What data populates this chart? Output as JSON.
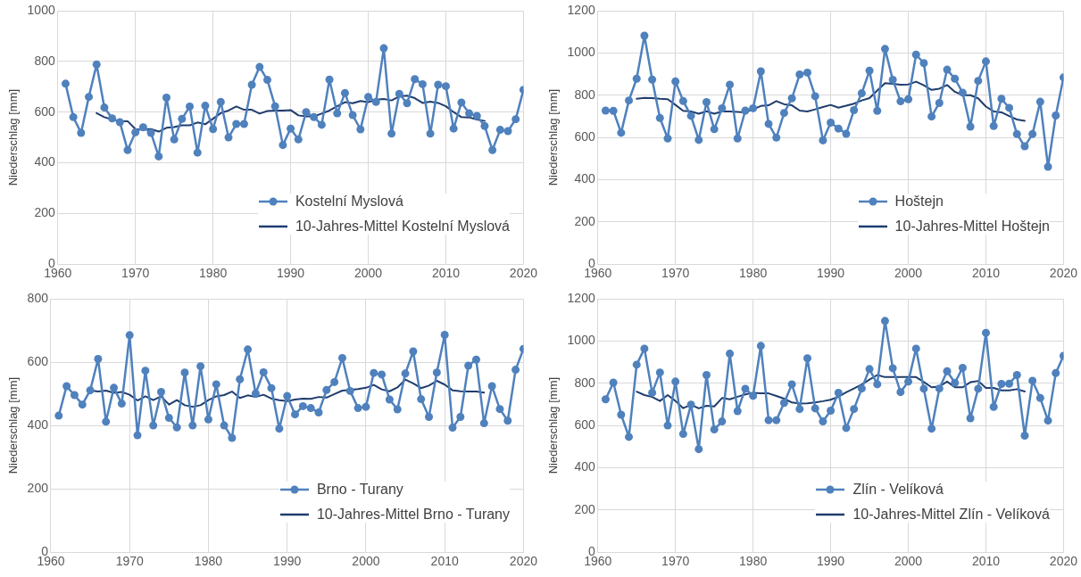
{
  "chart_data": [
    {
      "type": "line",
      "ylabel": "Niederschlag [mm]",
      "xlim": [
        1960,
        2020
      ],
      "xticks": [
        1960,
        1970,
        1980,
        1990,
        2000,
        2010,
        2020
      ],
      "ylim": [
        0,
        1000
      ],
      "yticks": [
        0,
        200,
        400,
        600,
        800,
        1000
      ],
      "grid": true,
      "legend": "bottom right",
      "series": [
        {
          "name": "Kostelní Myslová",
          "color": "#4f81bd",
          "marker": "circle",
          "x": [
            1961,
            1962,
            1963,
            1964,
            1965,
            1966,
            1967,
            1968,
            1969,
            1970,
            1971,
            1972,
            1973,
            1974,
            1975,
            1976,
            1977,
            1978,
            1979,
            1980,
            1981,
            1982,
            1983,
            1984,
            1985,
            1986,
            1987,
            1988,
            1989,
            1990,
            1991,
            1992,
            1993,
            1994,
            1995,
            1996,
            1997,
            1998,
            1999,
            2000,
            2001,
            2002,
            2003,
            2004,
            2005,
            2006,
            2007,
            2008,
            2009,
            2010,
            2011,
            2012,
            2013,
            2014,
            2015,
            2016,
            2017,
            2018,
            2019,
            2020
          ],
          "values": [
            712,
            580,
            518,
            660,
            788,
            618,
            575,
            560,
            450,
            520,
            540,
            518,
            425,
            657,
            492,
            573,
            622,
            440,
            625,
            533,
            640,
            500,
            553,
            553,
            708,
            778,
            727,
            623,
            470,
            535,
            492,
            600,
            580,
            550,
            728,
            595,
            675,
            588,
            532,
            660,
            640,
            852,
            515,
            672,
            635,
            730,
            710,
            515,
            708,
            702,
            535,
            638,
            595,
            585,
            545,
            450,
            530,
            525,
            572,
            688
          ]
        },
        {
          "name": "10-Jahres-Mittel Kostelní Myslová",
          "color": "#1f3d6e",
          "marker": "none",
          "x": [
            1965,
            1966,
            1967,
            1968,
            1969,
            1970,
            1971,
            1972,
            1973,
            1974,
            1975,
            1976,
            1977,
            1978,
            1979,
            1980,
            1981,
            1982,
            1983,
            1984,
            1985,
            1986,
            1987,
            1988,
            1989,
            1990,
            1991,
            1992,
            1993,
            1994,
            1995,
            1996,
            1997,
            1998,
            1999,
            2000,
            2001,
            2002,
            2003,
            2004,
            2005,
            2006,
            2007,
            2008,
            2009,
            2010,
            2011,
            2012,
            2013,
            2014,
            2015
          ],
          "values": [
            596,
            580,
            571,
            565,
            564,
            533,
            532,
            533,
            523,
            538,
            541,
            548,
            548,
            559,
            552,
            574,
            596,
            606,
            622,
            609,
            609,
            594,
            604,
            606,
            606,
            608,
            587,
            583,
            583,
            594,
            606,
            623,
            639,
            635,
            644,
            639,
            649,
            652,
            646,
            662,
            665,
            655,
            636,
            641,
            636,
            623,
            600,
            580,
            579,
            571,
            565
          ]
        }
      ]
    },
    {
      "type": "line",
      "ylabel": "Niederschlag [mm]",
      "xlim": [
        1960,
        2020
      ],
      "xticks": [
        1960,
        1970,
        1980,
        1990,
        2000,
        2010,
        2020
      ],
      "ylim": [
        0,
        1200
      ],
      "yticks": [
        0,
        200,
        400,
        600,
        800,
        1000,
        1200
      ],
      "grid": true,
      "legend": "bottom right",
      "series": [
        {
          "name": "Hoštejn",
          "color": "#4f81bd",
          "marker": "circle",
          "x": [
            1961,
            1962,
            1963,
            1964,
            1965,
            1966,
            1967,
            1968,
            1969,
            1970,
            1971,
            1972,
            1973,
            1974,
            1975,
            1976,
            1977,
            1978,
            1979,
            1980,
            1981,
            1982,
            1983,
            1984,
            1985,
            1986,
            1987,
            1988,
            1989,
            1990,
            1991,
            1992,
            1993,
            1994,
            1995,
            1996,
            1997,
            1998,
            1999,
            2000,
            2001,
            2002,
            2003,
            2004,
            2005,
            2006,
            2007,
            2008,
            2009,
            2010,
            2011,
            2012,
            2013,
            2014,
            2015,
            2016,
            2017,
            2018,
            2019,
            2020
          ],
          "values": [
            727,
            726,
            622,
            775,
            878,
            1082,
            874,
            692,
            595,
            865,
            772,
            702,
            588,
            767,
            639,
            738,
            850,
            595,
            727,
            738,
            913,
            664,
            599,
            716,
            785,
            898,
            907,
            795,
            586,
            670,
            642,
            617,
            729,
            809,
            916,
            726,
            1019,
            873,
            771,
            781,
            992,
            952,
            699,
            763,
            921,
            878,
            812,
            651,
            868,
            960,
            654,
            783,
            740,
            616,
            558,
            616,
            769,
            461,
            704,
            884
          ]
        },
        {
          "name": "10-Jahres-Mittel Hoštejn",
          "color": "#1f3d6e",
          "marker": "none",
          "x": [
            1965,
            1966,
            1967,
            1968,
            1969,
            1970,
            1971,
            1972,
            1973,
            1974,
            1975,
            1976,
            1977,
            1978,
            1979,
            1980,
            1981,
            1982,
            1983,
            1984,
            1985,
            1986,
            1987,
            1988,
            1989,
            1990,
            1991,
            1992,
            1993,
            1994,
            1995,
            1996,
            1997,
            1998,
            1999,
            2000,
            2001,
            2002,
            2003,
            2004,
            2005,
            2006,
            2007,
            2008,
            2009,
            2010,
            2011,
            2012,
            2013,
            2014,
            2015
          ],
          "values": [
            783,
            787,
            786,
            783,
            781,
            754,
            726,
            723,
            712,
            724,
            712,
            723,
            723,
            721,
            719,
            733,
            749,
            752,
            772,
            757,
            752,
            727,
            723,
            733,
            744,
            754,
            741,
            750,
            760,
            775,
            786,
            822,
            857,
            854,
            850,
            851,
            864,
            847,
            825,
            831,
            848,
            816,
            800,
            800,
            785,
            746,
            723,
            719,
            701,
            685,
            679
          ]
        }
      ]
    },
    {
      "type": "line",
      "ylabel": "Niederschlag [mm]",
      "xlim": [
        1960,
        2020
      ],
      "xticks": [
        1960,
        1970,
        1980,
        1990,
        2000,
        2010,
        2020
      ],
      "ylim": [
        0,
        800
      ],
      "yticks": [
        0,
        200,
        400,
        600,
        800
      ],
      "grid": true,
      "legend": "bottom right",
      "series": [
        {
          "name": "Brno - Turany",
          "color": "#4f81bd",
          "marker": "circle",
          "x": [
            1961,
            1962,
            1963,
            1964,
            1965,
            1966,
            1967,
            1968,
            1969,
            1970,
            1971,
            1972,
            1973,
            1974,
            1975,
            1976,
            1977,
            1978,
            1979,
            1980,
            1981,
            1982,
            1983,
            1984,
            1985,
            1986,
            1987,
            1988,
            1989,
            1990,
            1991,
            1992,
            1993,
            1994,
            1995,
            1996,
            1997,
            1998,
            1999,
            2000,
            2001,
            2002,
            2003,
            2004,
            2005,
            2006,
            2007,
            2008,
            2009,
            2010,
            2011,
            2012,
            2013,
            2014,
            2015,
            2016,
            2017,
            2018,
            2019,
            2020
          ],
          "values": [
            431,
            524,
            496,
            466,
            511,
            610,
            412,
            519,
            469,
            685,
            369,
            573,
            400,
            506,
            424,
            394,
            567,
            400,
            587,
            419,
            530,
            400,
            361,
            546,
            640,
            501,
            568,
            518,
            390,
            493,
            435,
            461,
            455,
            441,
            512,
            537,
            613,
            509,
            455,
            459,
            566,
            561,
            482,
            451,
            564,
            634,
            483,
            427,
            567,
            686,
            393,
            427,
            589,
            608,
            407,
            524,
            452,
            415,
            576,
            642
          ]
        },
        {
          "name": "10-Jahres-Mittel Brno - Turany",
          "color": "#1f3d6e",
          "marker": "none",
          "x": [
            1965,
            1966,
            1967,
            1968,
            1969,
            1970,
            1971,
            1972,
            1973,
            1974,
            1975,
            1976,
            1977,
            1978,
            1979,
            1980,
            1981,
            1982,
            1983,
            1984,
            1985,
            1986,
            1987,
            1988,
            1989,
            1990,
            1991,
            1992,
            1993,
            1994,
            1995,
            1996,
            1997,
            1998,
            1999,
            2000,
            2001,
            2002,
            2003,
            2004,
            2005,
            2006,
            2007,
            2008,
            2009,
            2010,
            2011,
            2012,
            2013,
            2014,
            2015
          ],
          "values": [
            511,
            507,
            510,
            503,
            506,
            497,
            479,
            492,
            480,
            492,
            466,
            480,
            464,
            459,
            464,
            480,
            492,
            496,
            507,
            487,
            495,
            490,
            497,
            485,
            480,
            477,
            482,
            485,
            484,
            490,
            488,
            499,
            510,
            512,
            515,
            519,
            528,
            514,
            508,
            520,
            545,
            533,
            518,
            526,
            541,
            529,
            511,
            508,
            507,
            507,
            504
          ]
        }
      ]
    },
    {
      "type": "line",
      "ylabel": "Niederschlag [mm]",
      "xlim": [
        1960,
        2020
      ],
      "xticks": [
        1960,
        1970,
        1980,
        1990,
        2000,
        2010,
        2020
      ],
      "ylim": [
        0,
        1200
      ],
      "yticks": [
        0,
        200,
        400,
        600,
        800,
        1000,
        1200
      ],
      "grid": true,
      "legend": "bottom right",
      "series": [
        {
          "name": "Zlín - Velíková",
          "color": "#4f81bd",
          "marker": "circle",
          "x": [
            1961,
            1962,
            1963,
            1964,
            1965,
            1966,
            1967,
            1968,
            1969,
            1970,
            1971,
            1972,
            1973,
            1974,
            1975,
            1976,
            1977,
            1978,
            1979,
            1980,
            1981,
            1982,
            1983,
            1984,
            1985,
            1986,
            1987,
            1988,
            1989,
            1990,
            1991,
            1992,
            1993,
            1994,
            1995,
            1996,
            1997,
            1998,
            1999,
            2000,
            2001,
            2002,
            2003,
            2004,
            2005,
            2006,
            2007,
            2008,
            2009,
            2010,
            2011,
            2012,
            2013,
            2014,
            2015,
            2016,
            2017,
            2018,
            2019,
            2020
          ],
          "values": [
            724,
            803,
            651,
            546,
            888,
            964,
            755,
            851,
            600,
            808,
            560,
            699,
            488,
            839,
            581,
            619,
            940,
            668,
            774,
            740,
            977,
            625,
            625,
            707,
            795,
            678,
            918,
            681,
            619,
            670,
            755,
            588,
            678,
            775,
            867,
            795,
            1095,
            871,
            758,
            808,
            964,
            774,
            585,
            775,
            857,
            802,
            873,
            634,
            774,
            1039,
            688,
            797,
            798,
            839,
            552,
            812,
            730,
            623,
            848,
            930
          ]
        },
        {
          "name": "10-Jahres-Mittel Zlín - Velíková",
          "color": "#1f3d6e",
          "marker": "none",
          "x": [
            1965,
            1966,
            1967,
            1968,
            1969,
            1970,
            1971,
            1972,
            1973,
            1974,
            1975,
            1976,
            1977,
            1978,
            1979,
            1980,
            1981,
            1982,
            1983,
            1984,
            1985,
            1986,
            1987,
            1988,
            1989,
            1990,
            1991,
            1992,
            1993,
            1994,
            1995,
            1996,
            1997,
            1998,
            1999,
            2000,
            2001,
            2002,
            2003,
            2004,
            2005,
            2006,
            2007,
            2008,
            2009,
            2010,
            2011,
            2012,
            2013,
            2014,
            2015
          ],
          "values": [
            760,
            744,
            735,
            716,
            744,
            716,
            682,
            698,
            681,
            693,
            690,
            730,
            724,
            736,
            747,
            755,
            752,
            752,
            740,
            727,
            709,
            704,
            705,
            709,
            715,
            722,
            736,
            757,
            775,
            794,
            817,
            839,
            829,
            829,
            829,
            829,
            829,
            806,
            781,
            784,
            808,
            781,
            781,
            805,
            811,
            778,
            778,
            766,
            766,
            772,
            761
          ]
        }
      ]
    }
  ]
}
